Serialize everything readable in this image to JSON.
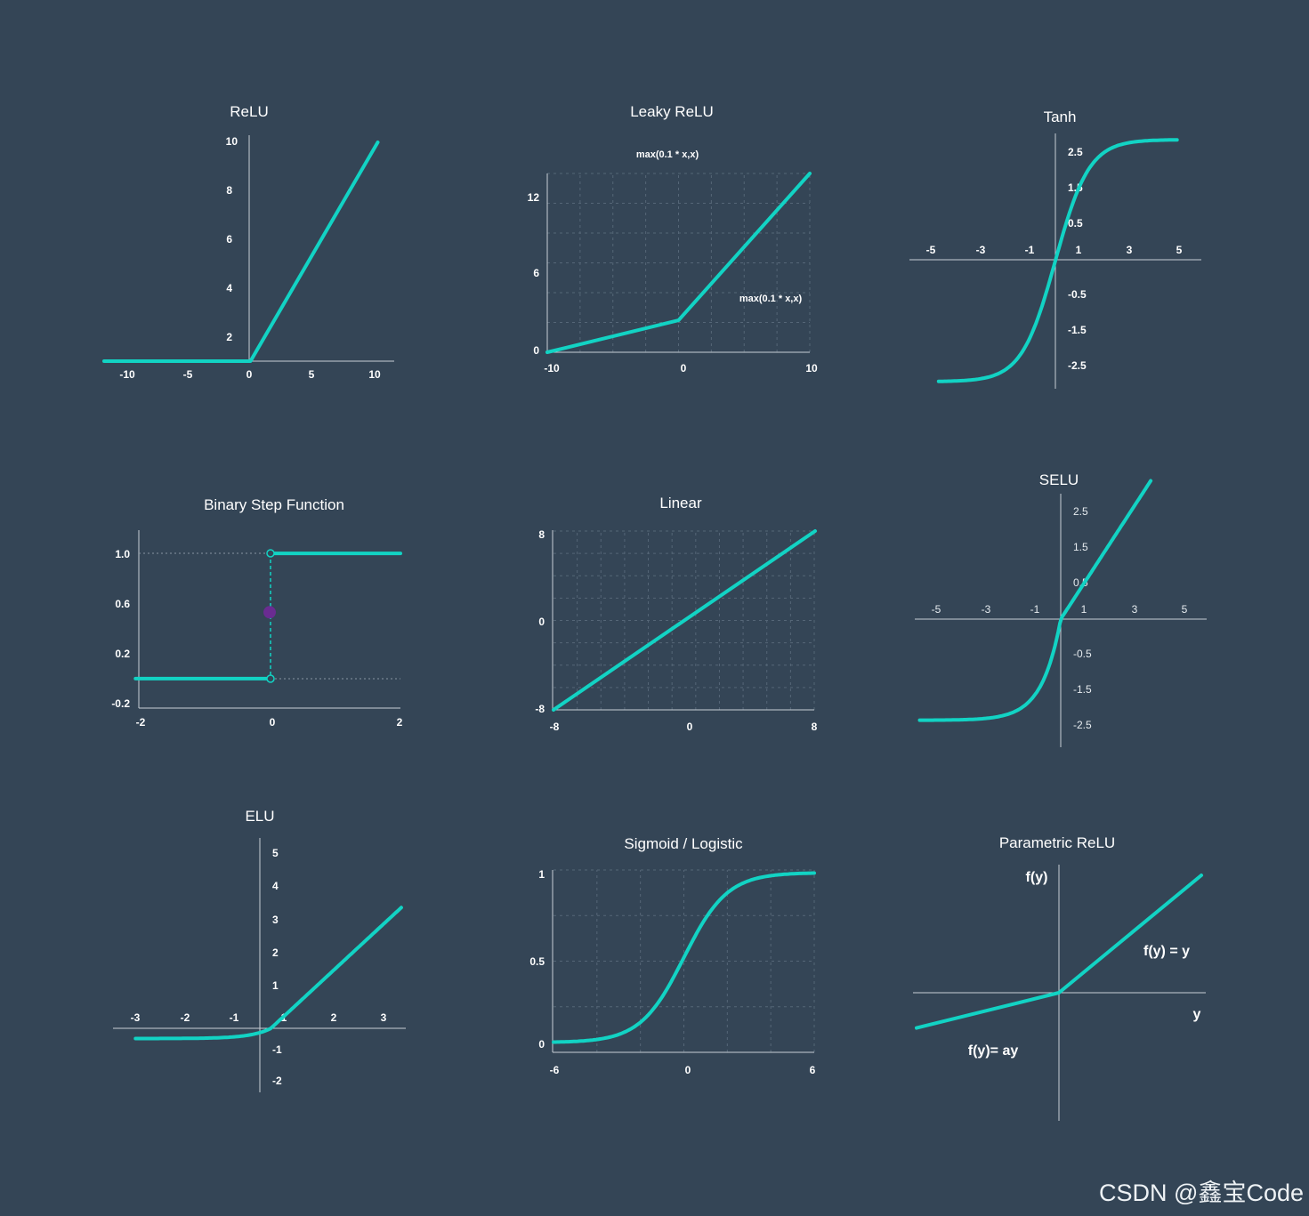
{
  "colors": {
    "background": "#344556",
    "curve": "#12d3c4",
    "axis": "#c7cfd6",
    "grid": "#556677",
    "step_dot": "#6a2c91"
  },
  "watermark": "CSDN @鑫宝Code",
  "chart_data": [
    {
      "id": "relu",
      "type": "line",
      "title": "ReLU",
      "grid": false,
      "xlim": [
        -11.5,
        11.5
      ],
      "ylim": [
        0,
        10
      ],
      "x_ticks": [
        "-10",
        "-5",
        "0",
        "5",
        "10"
      ],
      "y_ticks": [
        "2",
        "4",
        "6",
        "8",
        "10"
      ],
      "series": [
        {
          "points": [
            [
              -11.5,
              0
            ],
            [
              0,
              0
            ],
            [
              10,
              10
            ]
          ]
        }
      ]
    },
    {
      "id": "leaky",
      "type": "line",
      "title": "Leaky ReLU",
      "grid": true,
      "xlim": [
        -10,
        10
      ],
      "ylim": [
        0,
        14
      ],
      "x_ticks": [
        "-10",
        "0",
        "10"
      ],
      "y_ticks": [
        "0",
        "6",
        "12"
      ],
      "annotations": [
        "max(0.1 * x,x)",
        "max(0.1 * x,x)"
      ],
      "series": [
        {
          "points": [
            [
              -10,
              0
            ],
            [
              0,
              2.5
            ],
            [
              10,
              14
            ]
          ]
        }
      ]
    },
    {
      "id": "tanh",
      "type": "line",
      "title": "Tanh",
      "grid": false,
      "xlim": [
        -6,
        6
      ],
      "ylim": [
        -3.3,
        3.3
      ],
      "x_ticks": [
        "-5",
        "-3",
        "-1",
        "1",
        "3",
        "5"
      ],
      "y_ticks": [
        "2.5",
        "1.5",
        "0.5",
        "-0.5",
        "-1.5",
        "-2.5"
      ],
      "series": [
        {
          "fn": "tanh",
          "x_range": [
            -4.8,
            5
          ],
          "y_scale": 3.3
        }
      ]
    },
    {
      "id": "step",
      "type": "line",
      "title": "Binary Step Function",
      "grid": false,
      "xlim": [
        -2,
        2
      ],
      "ylim": [
        -0.2,
        1.2
      ],
      "x_ticks": [
        "-2",
        "0",
        "2"
      ],
      "y_ticks": [
        "1.0",
        "0.6",
        "0.2",
        "-0.2"
      ],
      "series": [
        {
          "points_low": [
            [
              -2.05,
              0
            ],
            [
              0,
              0
            ]
          ],
          "points_high": [
            [
              0,
              1
            ],
            [
              2,
              1
            ]
          ],
          "jump_marker_y": 0.53
        }
      ]
    },
    {
      "id": "linear",
      "type": "line",
      "title": "Linear",
      "grid": true,
      "xlim": [
        -8,
        8
      ],
      "ylim": [
        -8,
        8
      ],
      "x_ticks": [
        "-8",
        "0",
        "8"
      ],
      "y_ticks": [
        "8",
        "0",
        "-8"
      ],
      "series": [
        {
          "points": [
            [
              -8,
              -8
            ],
            [
              8,
              8
            ]
          ]
        }
      ]
    },
    {
      "id": "selu",
      "type": "line",
      "title": "SELU",
      "grid": false,
      "xlim": [
        -6,
        6
      ],
      "ylim": [
        -3.3,
        3.3
      ],
      "x_ticks": [
        "-5",
        "-3",
        "-1",
        "1",
        "3",
        "5"
      ],
      "y_ticks": [
        "2.5",
        "1.5",
        "0.5",
        "-0.5",
        "-1.5",
        "-2.5"
      ],
      "series": [
        {
          "fn": "selu",
          "x_range": [
            -5.8,
            3.7
          ]
        }
      ]
    },
    {
      "id": "elu",
      "type": "line",
      "title": "ELU",
      "grid": false,
      "xlim": [
        -3.5,
        3
      ],
      "ylim": [
        -2.5,
        5.5
      ],
      "x_ticks": [
        "-3",
        "-2",
        "-1",
        "1",
        "2",
        "3"
      ],
      "y_ticks": [
        "5",
        "4",
        "3",
        "2",
        "1",
        "-1",
        "-2"
      ],
      "series": [
        {
          "fn": "elu",
          "x_range": [
            -3.0,
            2.9
          ]
        }
      ]
    },
    {
      "id": "sigmoid",
      "type": "line",
      "title": "Sigmoid / Logistic",
      "grid": true,
      "xlim": [
        -6,
        6
      ],
      "ylim": [
        0,
        1
      ],
      "x_ticks": [
        "-6",
        "0",
        "6"
      ],
      "y_ticks": [
        "1",
        "0.5",
        "0"
      ],
      "series": [
        {
          "fn": "sigmoid",
          "x_range": [
            -6,
            6
          ]
        }
      ]
    },
    {
      "id": "prelu",
      "type": "line",
      "title": "Parametric ReLU",
      "grid": false,
      "xlim": [
        -1,
        1
      ],
      "ylim": [
        -1,
        1
      ],
      "labels": {
        "y_axis": "f(y)",
        "x_axis": "y",
        "positive": "f(y) = y",
        "negative": "f(y)= ay"
      },
      "series": [
        {
          "points": [
            [
              -1,
              -0.3
            ],
            [
              0,
              0
            ],
            [
              1,
              1
            ]
          ]
        }
      ]
    }
  ]
}
